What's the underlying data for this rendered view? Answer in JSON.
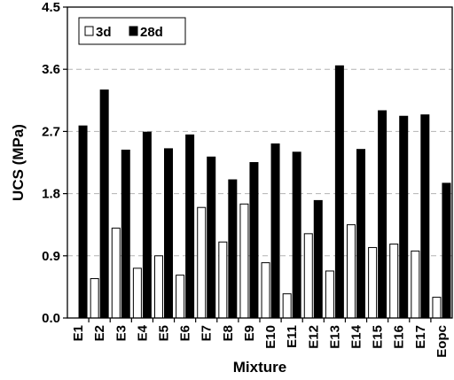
{
  "chart_data": {
    "type": "bar",
    "title": "",
    "xlabel": "Mixture",
    "ylabel": "UCS (MPa)",
    "ylim": [
      0,
      4.5
    ],
    "yticks": [
      0.0,
      0.9,
      1.8,
      2.7,
      3.6,
      4.5
    ],
    "ytick_labels": [
      "0.0",
      "0.9",
      "1.8",
      "2.7",
      "3.6",
      "4.5"
    ],
    "grid": "horizontal dashed at 0.9, 1.8, 2.7, 3.6",
    "legend_position": "top-left",
    "categories": [
      "E1",
      "E2",
      "E3",
      "E4",
      "E5",
      "E6",
      "E7",
      "E8",
      "E9",
      "E10",
      "E11",
      "E12",
      "E13",
      "E14",
      "E15",
      "E16",
      "E17",
      "Eopc"
    ],
    "series": [
      {
        "name": "3d",
        "color": "#ffffff",
        "values": [
          0.0,
          0.57,
          1.3,
          0.72,
          0.9,
          0.62,
          1.6,
          1.1,
          1.65,
          0.8,
          0.35,
          1.22,
          0.68,
          1.35,
          1.02,
          1.07,
          0.97,
          0.3
        ]
      },
      {
        "name": "28d",
        "color": "#000000",
        "values": [
          2.78,
          3.3,
          2.43,
          2.69,
          2.45,
          2.65,
          2.33,
          2.0,
          2.25,
          2.52,
          2.4,
          1.7,
          3.65,
          2.44,
          3.0,
          2.92,
          2.94,
          1.95
        ]
      }
    ]
  }
}
